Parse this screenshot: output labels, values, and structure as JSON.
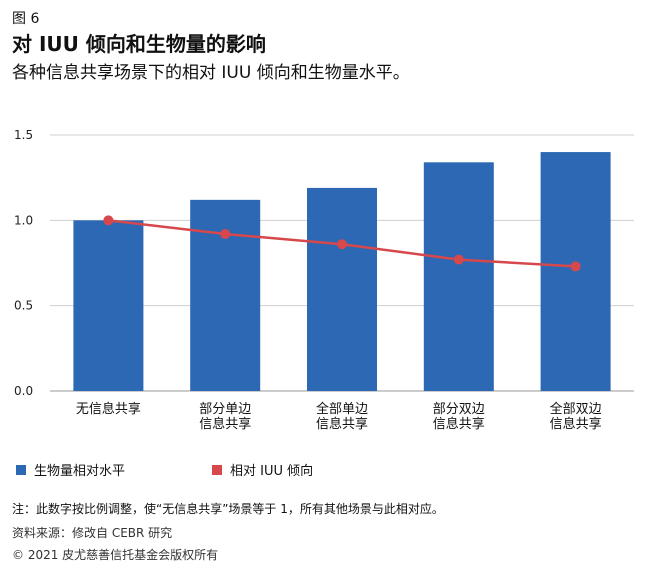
{
  "figure_label": "图 6",
  "title": "对 IUU 倾向和生物量的影响",
  "subtitle": "各种信息共享场景下的相对 IUU 倾向和生物量水平。",
  "chart_data": {
    "type": "bar",
    "title": "对 IUU 倾向和生物量的影响",
    "xlabel": "",
    "ylabel": "",
    "ylim": [
      0,
      1.5
    ],
    "yticks": [
      {
        "value": 0,
        "label": "0.0"
      },
      {
        "value": 0.5,
        "label": "0.5"
      },
      {
        "value": 1.0,
        "label": "1.0"
      },
      {
        "value": 1.5,
        "label": "1.5"
      }
    ],
    "categories": [
      [
        "无信息共享"
      ],
      [
        "部分单边",
        "信息共享"
      ],
      [
        "全部单边",
        "信息共享"
      ],
      [
        "部分双边",
        "信息共享"
      ],
      [
        "全部双边",
        "信息共享"
      ]
    ],
    "series": [
      {
        "name": "生物量相对水平",
        "type": "bar",
        "color": "#2d68b4",
        "values": [
          1.0,
          1.12,
          1.19,
          1.34,
          1.4
        ]
      },
      {
        "name": "相对 IUU 倾向",
        "type": "line",
        "color": "#d6484b",
        "values": [
          1.0,
          0.92,
          0.86,
          0.77,
          0.73
        ]
      }
    ],
    "legend_position": "bottom-left"
  },
  "note": "注：此数字按比例调整，使“无信息共享”场景等于 1，所有其他场景与此相对应。",
  "source": "资料来源：修改自 CEBR 研究",
  "copyright": "© 2021 皮尤慈善信托基金会版权所有"
}
